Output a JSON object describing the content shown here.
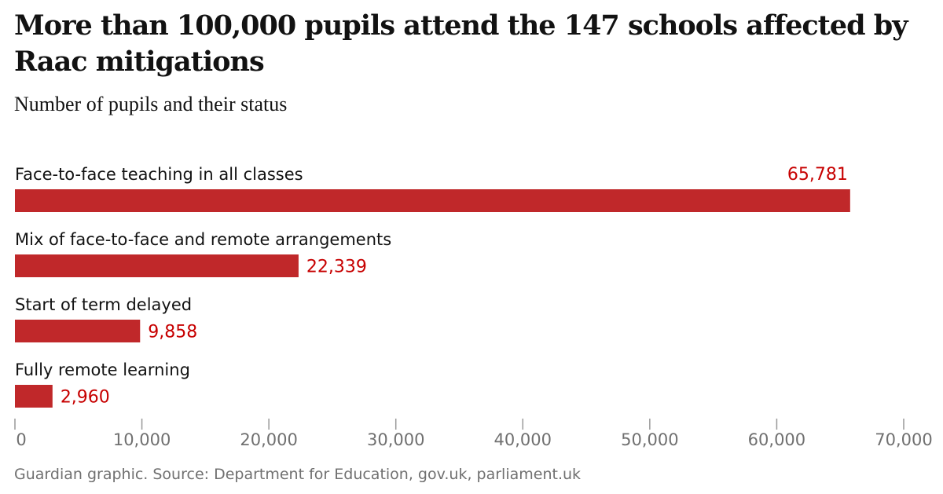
{
  "header": {
    "title": "More than 100,000 pupils attend the 147 schools affected by Raac mitigations",
    "subtitle": "Number of pupils and their status"
  },
  "footer": {
    "source": "Guardian graphic. Source: Department for Education, gov.uk, parliament.uk"
  },
  "colors": {
    "bar": "#c0282a",
    "value_label": "#c70000",
    "axis": "#999999"
  },
  "chart_data": {
    "type": "bar",
    "orientation": "horizontal",
    "title": "More than 100,000 pupils attend the 147 schools affected by Raac mitigations",
    "subtitle": "Number of pupils and their status",
    "categories": [
      "Face-to-face teaching in all classes",
      "Mix of face-to-face and remote arrangements",
      "Start of term delayed",
      "Fully remote learning"
    ],
    "values": [
      65781,
      22339,
      9858,
      2960
    ],
    "value_labels": [
      "65,781",
      "22,339",
      "9,858",
      "2,960"
    ],
    "xlim": [
      0,
      70000
    ],
    "xticks": [
      0,
      10000,
      20000,
      30000,
      40000,
      50000,
      60000,
      70000
    ],
    "xtick_labels": [
      "0",
      "10,000",
      "20,000",
      "30,000",
      "40,000",
      "50,000",
      "60,000",
      "70,000"
    ],
    "grid": false,
    "legend": "none"
  }
}
